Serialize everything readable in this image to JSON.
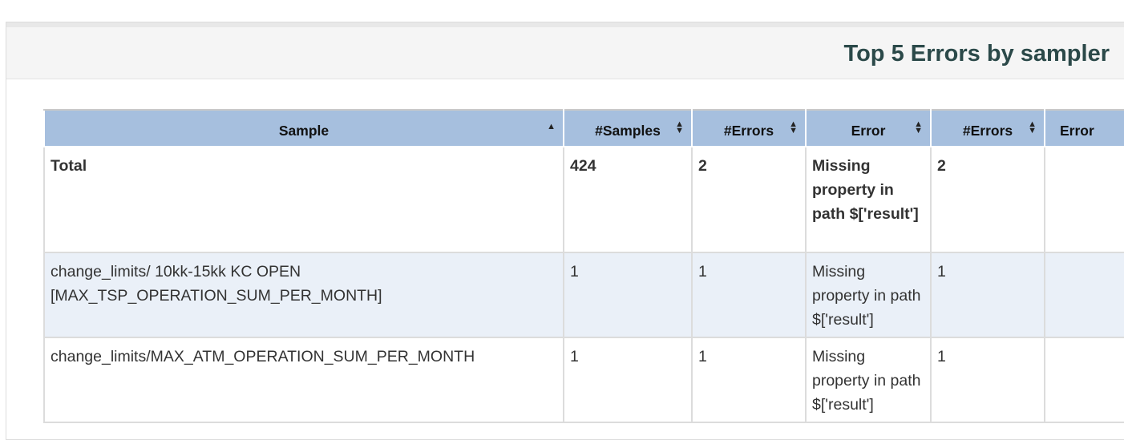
{
  "panel": {
    "title": "Top 5 Errors by sampler"
  },
  "table": {
    "columns": [
      {
        "label": "Sample",
        "sort": "asc"
      },
      {
        "label": "#Samples",
        "sort": "both"
      },
      {
        "label": "#Errors",
        "sort": "both"
      },
      {
        "label": "Error",
        "sort": "both"
      },
      {
        "label": "#Errors",
        "sort": "both"
      },
      {
        "label": "Error",
        "sort": "none"
      }
    ],
    "rows": [
      {
        "sample": "Total",
        "samples": "424",
        "errors": "2",
        "error": "Missing property in path $['result']",
        "errors2": "2",
        "error2": ""
      },
      {
        "sample": "change_limits/ 10kk-15kk KC OPEN [MAX_TSP_OPERATION_SUM_PER_MONTH]",
        "samples": "1",
        "errors": "1",
        "error": "Missing property in path $['result']",
        "errors2": "1",
        "error2": ""
      },
      {
        "sample": "change_limits/MAX_ATM_OPERATION_SUM_PER_MONTH",
        "samples": "1",
        "errors": "1",
        "error": "Missing property in path $['result']",
        "errors2": "1",
        "error2": ""
      }
    ]
  }
}
